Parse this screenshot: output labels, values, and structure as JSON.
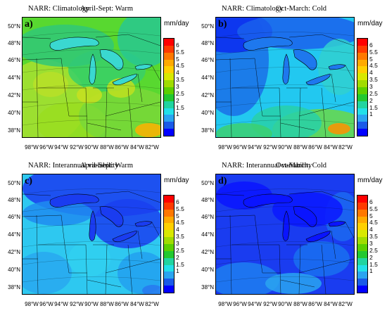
{
  "panels": [
    {
      "label": "a)",
      "source": "NARR: Climatology",
      "season": "April-Sept: Warm",
      "theme": "warm"
    },
    {
      "label": "b)",
      "source": "NARR: Climatology",
      "season": "Oct-March: Cold",
      "theme": "cold"
    },
    {
      "label": "c)",
      "source": "NARR: Interannual variability",
      "season": "April-Sept: Warm",
      "theme": "varw"
    },
    {
      "label": "d)",
      "source": "NARR: Interannual variability",
      "season": "Oct-March: Cold",
      "theme": "varc"
    }
  ],
  "unit": "mm/day",
  "latitudes": [
    "50°N",
    "48°N",
    "46°N",
    "44°N",
    "42°N",
    "40°N",
    "38°N"
  ],
  "longitudes": [
    "98°W",
    "96°W",
    "94°W",
    "92°W",
    "90°W",
    "88°W",
    "86°W",
    "84°W",
    "82°W"
  ],
  "colorbar": {
    "ticks": [
      "6",
      "5.5",
      "5",
      "4.5",
      "4",
      "3.5",
      "3",
      "2.5",
      "2",
      "1.5",
      "1"
    ],
    "colors": [
      "#ff0000",
      "#ff3a00",
      "#ff7800",
      "#ffaa00",
      "#ffd000",
      "#d8e800",
      "#a0dc00",
      "#5cd000",
      "#22c830",
      "#21d4a0",
      "#22e0e8",
      "#2aa4f0",
      "#1a5ae8",
      "#0000ff"
    ]
  }
}
